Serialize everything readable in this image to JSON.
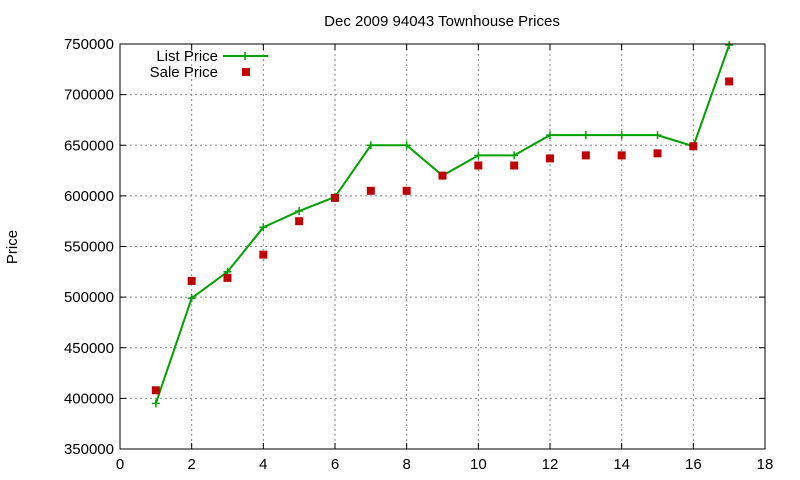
{
  "colors": {
    "list_price": "#00a000",
    "sale_price": "#c00000",
    "axis": "#000000",
    "grid": "#888888"
  },
  "chart_data": {
    "type": "line",
    "title": "Dec 2009 94043 Townhouse Prices",
    "xlabel": "",
    "ylabel": "Price",
    "xlim": [
      0,
      18
    ],
    "ylim": [
      350000,
      750000
    ],
    "x_ticks": [
      "0",
      "2",
      "4",
      "6",
      "8",
      "10",
      "12",
      "14",
      "16",
      "18"
    ],
    "y_ticks": [
      "350000",
      "400000",
      "450000",
      "500000",
      "550000",
      "600000",
      "650000",
      "700000",
      "750000"
    ],
    "grid": true,
    "legend_position": "top-left",
    "x": [
      1,
      2,
      3,
      4,
      5,
      6,
      7,
      8,
      9,
      10,
      11,
      12,
      13,
      14,
      15,
      16,
      17
    ],
    "series": [
      {
        "name": "List Price",
        "style": "line-with-plus-markers",
        "values": [
          395000,
          499000,
          525000,
          569000,
          585000,
          599000,
          650000,
          650000,
          620000,
          640000,
          640000,
          660000,
          660000,
          660000,
          660000,
          649000,
          749000
        ]
      },
      {
        "name": "Sale Price",
        "style": "square-markers",
        "values": [
          408000,
          516000,
          519000,
          542000,
          575000,
          598000,
          605000,
          605000,
          620000,
          630000,
          630000,
          637000,
          640000,
          640000,
          642000,
          649000,
          713000
        ]
      }
    ]
  }
}
